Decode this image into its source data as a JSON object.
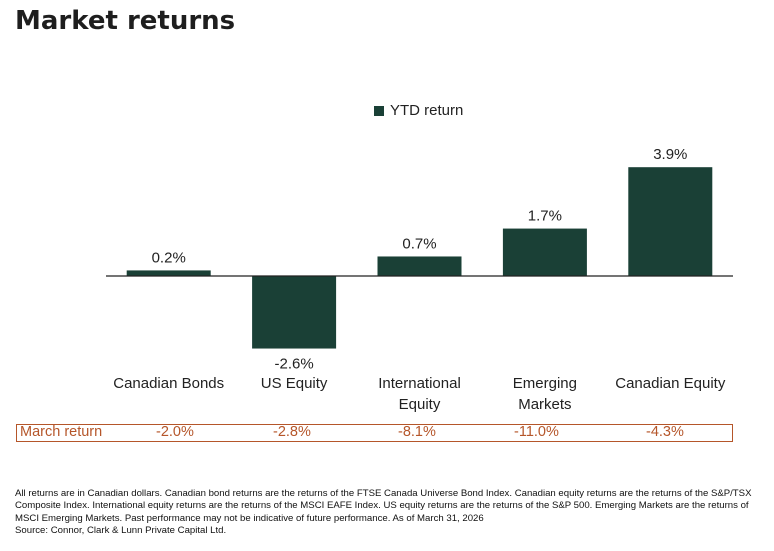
{
  "title": "Market returns",
  "colors": {
    "bar": "#1a4036",
    "axis": "#222222",
    "march": "#b5562a"
  },
  "chart_data": {
    "type": "bar",
    "title": "Market returns",
    "categories": [
      "Canadian Bonds",
      "US Equity",
      "International Equity",
      "Emerging Markets",
      "Canadian Equity"
    ],
    "category_lines": [
      [
        "Canadian Bonds"
      ],
      [
        "US Equity"
      ],
      [
        "International",
        "Equity"
      ],
      [
        "Emerging",
        "Markets"
      ],
      [
        "Canadian Equity"
      ]
    ],
    "series": [
      {
        "name": "YTD return",
        "values": [
          0.2,
          -2.6,
          0.7,
          1.7,
          3.9
        ]
      }
    ],
    "data_labels": [
      "0.2%",
      "-2.6%",
      "0.7%",
      "1.7%",
      "3.9%"
    ],
    "legend": {
      "entries": [
        "YTD return"
      ],
      "placement": "top-center"
    },
    "xlabel": "",
    "ylabel": "",
    "ylim": [
      -2.8,
      4.0
    ],
    "grid": false
  },
  "march_row": {
    "label": "March return",
    "values": [
      "-2.0%",
      "-2.8%",
      "-8.1%",
      "-11.0%",
      "-4.3%"
    ]
  },
  "footnote": {
    "text": "All returns are in Canadian dollars. Canadian bond returns are the returns of the FTSE Canada Universe Bond Index. Canadian equity returns are the returns of the S&P/TSX Composite Index. International equity returns are the returns of the MSCI EAFE Index. US equity returns are the returns of the S&P 500. Emerging Markets are the returns of MSCI Emerging Markets. Past performance may not be indicative of future performance. As of March 31, 2026",
    "source": "Source: Connor, Clark & Lunn Private Capital Ltd."
  }
}
